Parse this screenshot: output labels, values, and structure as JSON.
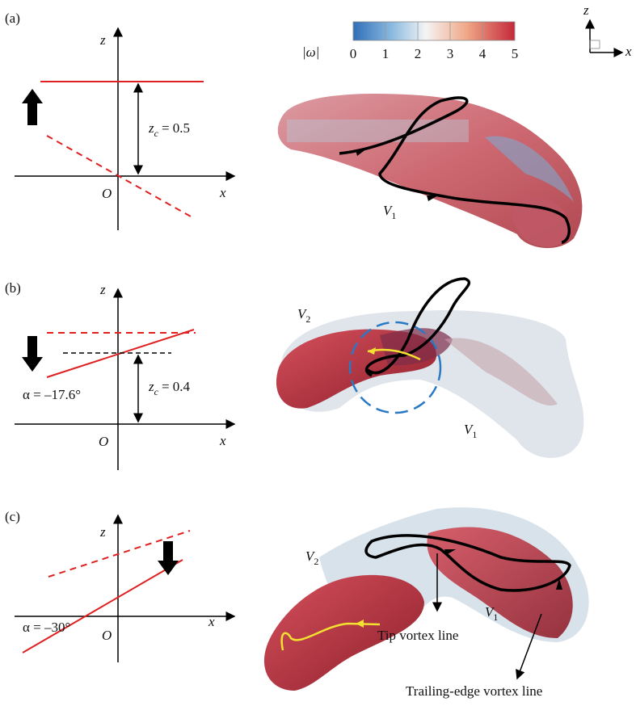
{
  "colorbar": {
    "label": "|ω|",
    "ticks": [
      0,
      1,
      2,
      3,
      4,
      5
    ]
  },
  "orientation": {
    "z": "z",
    "x": "x"
  },
  "panels": [
    {
      "label": "(a)",
      "axis": {
        "z": "z",
        "x": "x",
        "origin": "O"
      },
      "zc": {
        "symbol": "z",
        "sub": "c",
        "text": "= 0.5"
      },
      "vortices": [
        {
          "symbol": "V",
          "sub": "1"
        }
      ]
    },
    {
      "label": "(b)",
      "axis": {
        "z": "z",
        "x": "x",
        "origin": "O"
      },
      "zc": {
        "symbol": "z",
        "sub": "c",
        "text": "= 0.4"
      },
      "alpha": "α = –17.6°",
      "vortices": [
        {
          "symbol": "V",
          "sub": "2"
        },
        {
          "symbol": "V",
          "sub": "1"
        }
      ]
    },
    {
      "label": "(c)",
      "axis": {
        "z": "z",
        "x": "x",
        "origin": "O"
      },
      "alpha": "α = –30°",
      "vortices": [
        {
          "symbol": "V",
          "sub": "2"
        },
        {
          "symbol": "V",
          "sub": "1"
        }
      ],
      "annotations": [
        "Tip vortex line",
        "Trailing-edge vortex line"
      ]
    }
  ]
}
